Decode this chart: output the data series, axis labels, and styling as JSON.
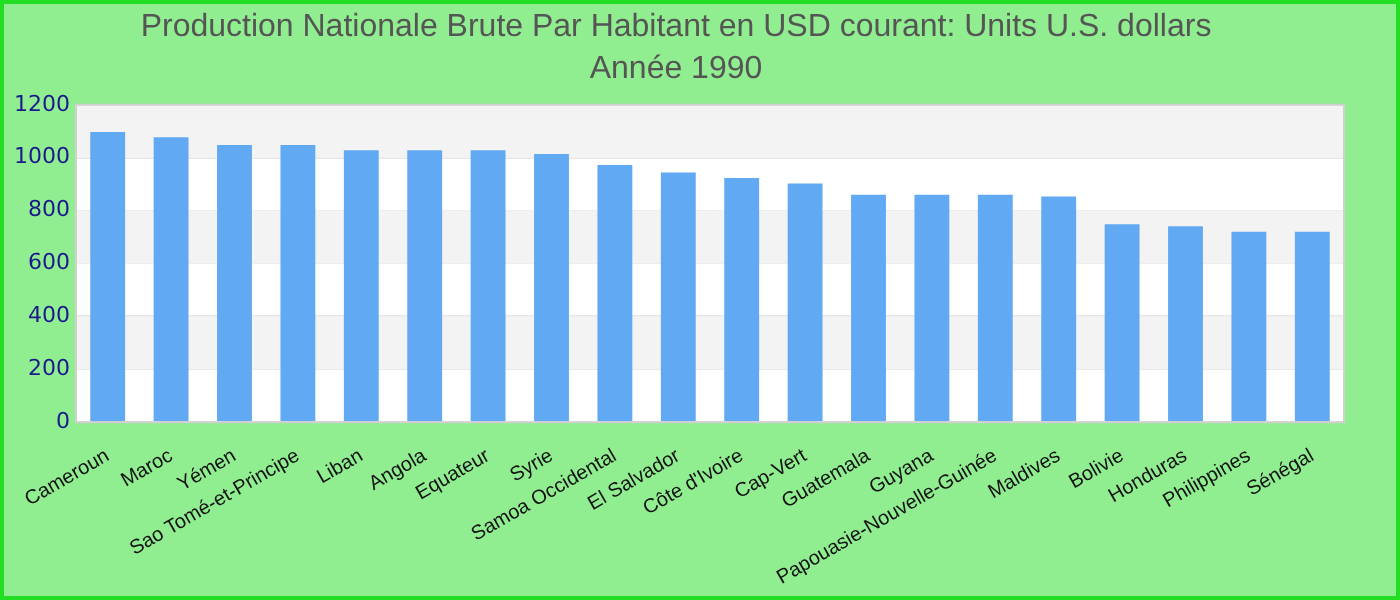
{
  "chart_data": {
    "type": "bar",
    "title": "Production Nationale Brute Par Habitant en USD courant: Units U.S. dollars",
    "subtitle": "Année 1990",
    "categories": [
      "Cameroun",
      "Maroc",
      "Yémen",
      "Sao Tomé-et-Principe",
      "Liban",
      "Angola",
      "Equateur",
      "Syrie",
      "Samoa Occidental",
      "El Salvador",
      "Côte d'Ivoire",
      "Cap-Vert",
      "Guatemala",
      "Guyana",
      "Papouasie-Nouvelle-Guinée",
      "Maldives",
      "Bolivie",
      "Honduras",
      "Philippines",
      "Sénégal"
    ],
    "values": [
      1097,
      1077,
      1048,
      1048,
      1028,
      1028,
      1028,
      1014,
      972,
      944,
      923,
      902,
      860,
      860,
      860,
      853,
      748,
      741,
      720,
      720
    ],
    "color": "#62a9f4",
    "ylim": [
      0,
      1200
    ],
    "yticks": [
      0,
      200,
      400,
      600,
      800,
      1000,
      1200
    ],
    "grid": "y",
    "legend": false
  }
}
